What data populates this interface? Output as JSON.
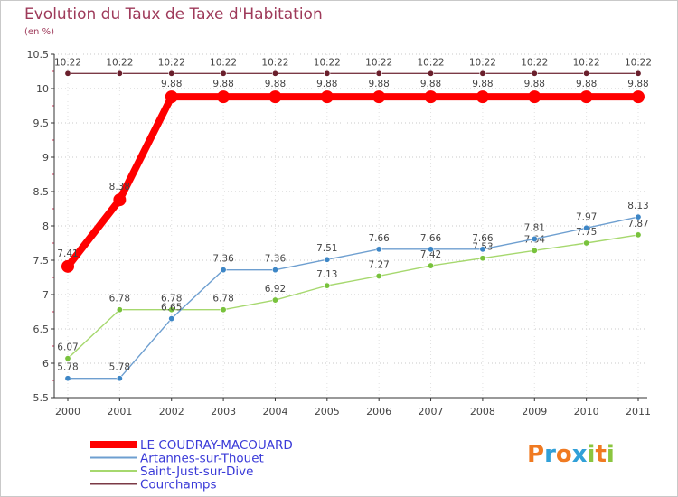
{
  "header": {
    "title": "Evolution du Taux de Taxe d'Habitation",
    "unit": "(en %)"
  },
  "brand": {
    "letters": [
      "P",
      "r",
      "o",
      "x",
      "i",
      "t",
      "i"
    ],
    "letter_colors": [
      "#f07a21",
      "#31a0d8",
      "#f07a21",
      "#31a0d8",
      "#8bc53f",
      "#f07a21",
      "#8bc53f"
    ]
  },
  "chart_data": {
    "type": "line",
    "title": "Evolution du Taux de Taxe d'Habitation",
    "ylabel": "(en %)",
    "xlabel": "",
    "ylim": [
      5.5,
      10.5
    ],
    "yticks": [
      5.5,
      6,
      6.5,
      7,
      7.5,
      8,
      8.5,
      9,
      9.5,
      10,
      10.5
    ],
    "ytick_labels": [
      "5.5",
      "6",
      "6.5",
      "7",
      "7.5",
      "8",
      "8.5",
      "9",
      "9.5",
      "10",
      "10.5"
    ],
    "categories": [
      "2000",
      "2001",
      "2002",
      "2003",
      "2004",
      "2005",
      "2006",
      "2007",
      "2008",
      "2009",
      "2010",
      "2011"
    ],
    "grid": "horizontal-dotted",
    "legend_position": "bottom-left",
    "series": [
      {
        "name": "LE COUDRAY-MACOUARD",
        "color": "#ff0000",
        "style": "thick",
        "values": [
          7.41,
          8.38,
          9.88,
          9.88,
          9.88,
          9.88,
          9.88,
          9.88,
          9.88,
          9.88,
          9.88,
          9.88
        ],
        "labels": [
          "7.41",
          "8.38",
          "9.88",
          "9.88",
          "9.88",
          "9.88",
          "9.88",
          "9.88",
          "9.88",
          "9.88",
          "9.88",
          "9.88"
        ]
      },
      {
        "name": "Artannes-sur-Thouet",
        "color": "#6e9fd0",
        "marker_color": "#3d86c6",
        "style": "thin",
        "values": [
          5.78,
          5.78,
          6.65,
          7.36,
          7.36,
          7.51,
          7.66,
          7.66,
          7.66,
          7.81,
          7.97,
          8.13
        ],
        "labels": [
          "5.78",
          "5.78",
          "6.65",
          "7.36",
          "7.36",
          "7.51",
          "7.66",
          "7.66",
          "7.66",
          "7.81",
          "7.97",
          "8.13"
        ]
      },
      {
        "name": "Saint-Just-sur-Dive",
        "color": "#a6d86e",
        "marker_color": "#78c23c",
        "style": "thin",
        "values": [
          6.07,
          6.78,
          6.78,
          6.78,
          6.92,
          7.13,
          7.27,
          7.42,
          7.53,
          7.64,
          7.75,
          7.87
        ],
        "labels": [
          "6.07",
          "6.78",
          "6.78",
          "6.78",
          "6.92",
          "7.13",
          "7.27",
          "7.42",
          "7.53",
          "7.64",
          "7.75",
          "7.87"
        ]
      },
      {
        "name": "Courchamps",
        "color": "#7b3a46",
        "marker_color": "#6a1f2c",
        "style": "thin",
        "values": [
          10.22,
          10.22,
          10.22,
          10.22,
          10.22,
          10.22,
          10.22,
          10.22,
          10.22,
          10.22,
          10.22,
          10.22
        ],
        "labels": [
          "10.22",
          "10.22",
          "10.22",
          "10.22",
          "10.22",
          "10.22",
          "10.22",
          "10.22",
          "10.22",
          "10.22",
          "10.22",
          "10.22"
        ]
      }
    ]
  }
}
